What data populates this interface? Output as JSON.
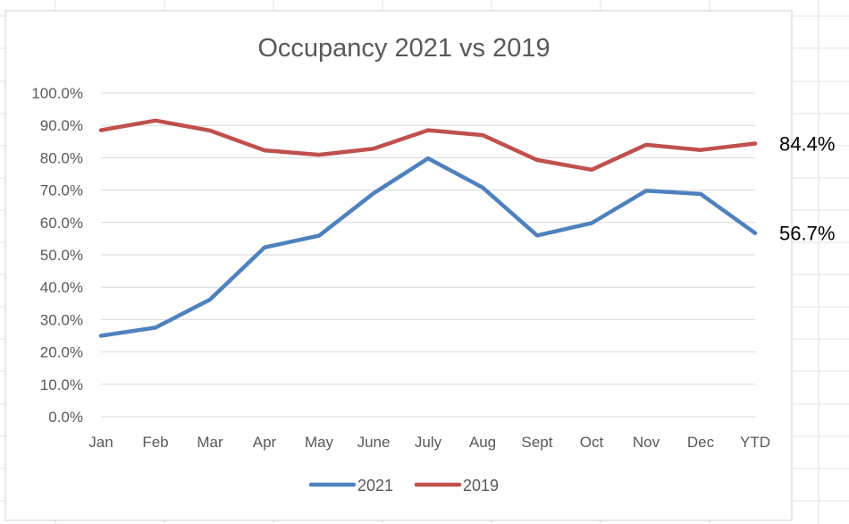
{
  "colors": {
    "series_2021": "#4f81bd",
    "series_2019": "#c0504d",
    "gridline": "#d9d9d9",
    "text": "#595959",
    "sheet_grid": "#e3e3e3",
    "chart_border": "#d0d0d0"
  },
  "chart_data": {
    "type": "line",
    "title": "Occupancy 2021 vs 2019",
    "xlabel": "",
    "ylabel": "",
    "categories": [
      "Jan",
      "Feb",
      "Mar",
      "Apr",
      "May",
      "June",
      "July",
      "Aug",
      "Sept",
      "Oct",
      "Nov",
      "Dec",
      "YTD"
    ],
    "ylim": [
      0,
      100
    ],
    "y_ticks": [
      "0.0%",
      "10.0%",
      "20.0%",
      "30.0%",
      "40.0%",
      "50.0%",
      "60.0%",
      "70.0%",
      "80.0%",
      "90.0%",
      "100.0%"
    ],
    "grid": true,
    "legend_position": "bottom",
    "series": [
      {
        "name": "2021",
        "color": "#4f81bd",
        "values": [
          25.0,
          27.5,
          36.2,
          52.3,
          55.9,
          69.0,
          79.8,
          70.8,
          56.0,
          59.8,
          69.8,
          68.8,
          56.7
        ]
      },
      {
        "name": "2019",
        "color": "#c0504d",
        "values": [
          88.5,
          91.5,
          88.4,
          82.3,
          80.9,
          82.8,
          88.5,
          87.0,
          79.3,
          76.3,
          84.0,
          82.4,
          84.4
        ]
      }
    ],
    "annotations": [
      {
        "series": "2019",
        "text": "84.4%"
      },
      {
        "series": "2021",
        "text": "56.7%"
      }
    ]
  }
}
